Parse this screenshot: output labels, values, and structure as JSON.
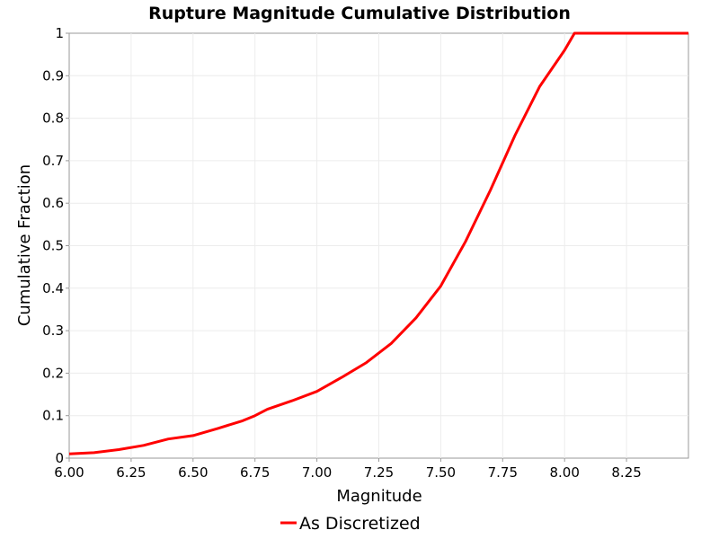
{
  "colors": {
    "series": "#ff0000",
    "grid": "#ececec",
    "border": "#9a9a9a",
    "background": "#ffffff"
  },
  "chart_data": {
    "type": "line",
    "title": "Rupture Magnitude Cumulative Distribution",
    "xlabel": "Magnitude",
    "ylabel": "Cumulative Fraction",
    "xlim": [
      6.0,
      8.5
    ],
    "ylim": [
      0,
      1
    ],
    "x_ticks": [
      6.0,
      6.25,
      6.5,
      6.75,
      7.0,
      7.25,
      7.5,
      7.75,
      8.0,
      8.25
    ],
    "x_tick_labels": [
      "6.00",
      "6.25",
      "6.50",
      "6.75",
      "7.00",
      "7.25",
      "7.50",
      "7.75",
      "8.00",
      "8.25"
    ],
    "y_ticks": [
      0,
      0.1,
      0.2,
      0.3,
      0.4,
      0.5,
      0.6,
      0.7,
      0.8,
      0.9,
      1
    ],
    "y_tick_labels": [
      "0",
      "0.1",
      "0.2",
      "0.3",
      "0.4",
      "0.5",
      "0.6",
      "0.7",
      "0.8",
      "0.9",
      "1"
    ],
    "grid": true,
    "legend_position": "bottom-center",
    "series": [
      {
        "name": "As Discretized",
        "color": "#ff0000",
        "x": [
          6.0,
          6.1,
          6.2,
          6.3,
          6.4,
          6.5,
          6.6,
          6.7,
          6.75,
          6.8,
          6.9,
          7.0,
          7.1,
          7.2,
          7.3,
          7.4,
          7.5,
          7.6,
          7.7,
          7.8,
          7.9,
          8.0,
          8.04,
          8.1,
          8.2,
          8.3,
          8.4,
          8.5
        ],
        "y": [
          0.01,
          0.013,
          0.02,
          0.03,
          0.045,
          0.053,
          0.07,
          0.088,
          0.1,
          0.115,
          0.135,
          0.157,
          0.19,
          0.225,
          0.27,
          0.33,
          0.405,
          0.51,
          0.63,
          0.76,
          0.875,
          0.96,
          1.0,
          1.0,
          1.0,
          1.0,
          1.0,
          1.0
        ]
      }
    ]
  }
}
